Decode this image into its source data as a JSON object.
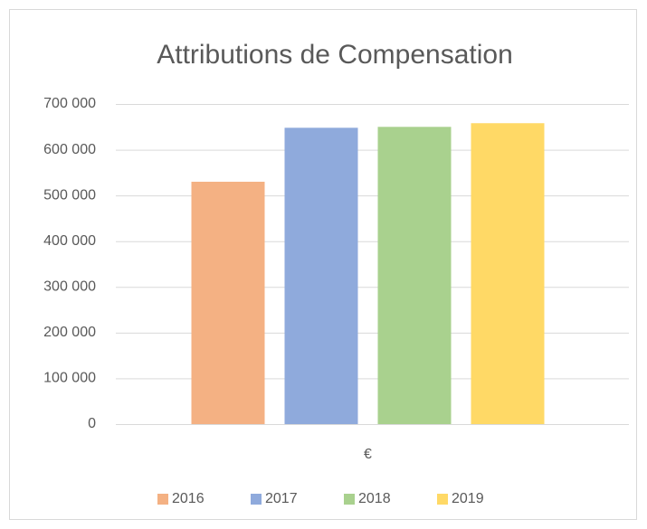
{
  "chart_data": {
    "type": "bar",
    "title": "Attributions de Compensation",
    "categories": [
      "€"
    ],
    "series": [
      {
        "name": "2016",
        "color": "#f4b183",
        "values": [
          530000
        ]
      },
      {
        "name": "2017",
        "color": "#8faadc",
        "values": [
          648000
        ]
      },
      {
        "name": "2018",
        "color": "#a9d18e",
        "values": [
          650000
        ]
      },
      {
        "name": "2019",
        "color": "#ffd966",
        "values": [
          658000
        ]
      }
    ],
    "ylim": [
      0,
      700000
    ],
    "yticks": [
      0,
      {
        "value": 100000,
        "label": "100 000"
      },
      {
        "value": 200000,
        "label": "200 000"
      },
      {
        "value": 300000,
        "label": "300 000"
      },
      {
        "value": 400000,
        "label": "400 000"
      },
      {
        "value": 500000,
        "label": "500 000"
      },
      {
        "value": 600000,
        "label": "600 000"
      },
      {
        "value": 700000,
        "label": "700 000"
      }
    ],
    "grid": true,
    "legend": "bottom"
  }
}
